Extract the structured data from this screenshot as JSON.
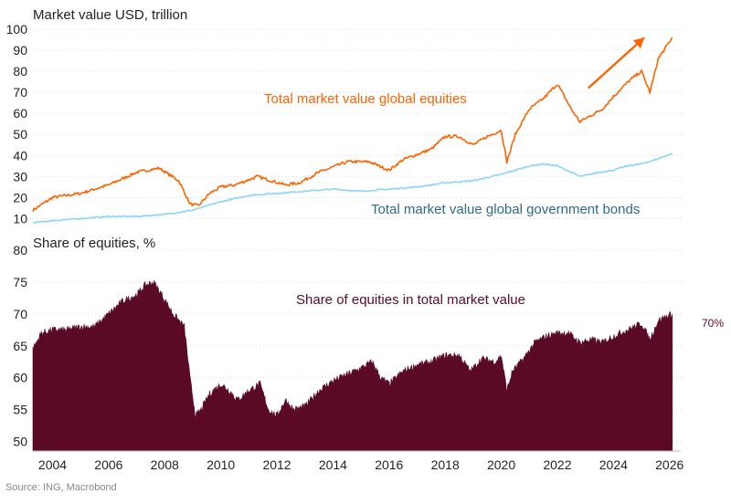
{
  "chart_data": [
    {
      "type": "line",
      "title": "Market value USD, trillion",
      "ylim": [
        8,
        100
      ],
      "yticks": [
        10,
        20,
        30,
        40,
        50,
        60,
        70,
        80,
        90,
        100
      ],
      "grid": true,
      "series": [
        {
          "name": "Total market value global equities",
          "color": "#ff6200",
          "x": [
            2003.3,
            2004.0,
            2005.0,
            2006.0,
            2007.0,
            2007.8,
            2008.5,
            2008.9,
            2009.2,
            2009.6,
            2010.0,
            2010.5,
            2011.3,
            2011.8,
            2012.3,
            2012.8,
            2013.5,
            2014.5,
            2015.3,
            2016.0,
            2016.5,
            2017.5,
            2018.0,
            2018.5,
            2019.0,
            2019.5,
            2020.0,
            2020.2,
            2020.5,
            2021.0,
            2021.5,
            2022.0,
            2022.5,
            2022.8,
            2023.2,
            2023.6,
            2024.0,
            2024.6,
            2025.0,
            2025.3,
            2025.6,
            2026.1
          ],
          "y": [
            14,
            20,
            22,
            26,
            32,
            34,
            28,
            17,
            16,
            22,
            25,
            26,
            30,
            28,
            26,
            27,
            32,
            37,
            37,
            33,
            38,
            43,
            49,
            49,
            45,
            49,
            52,
            37,
            50,
            62,
            67,
            74,
            62,
            56,
            59,
            62,
            68,
            76,
            80,
            70,
            86,
            96
          ]
        },
        {
          "name": "Total market value global government bonds",
          "color": "#8fd3f5",
          "x": [
            2003.3,
            2004.0,
            2005.0,
            2006.0,
            2007.0,
            2008.0,
            2009.0,
            2010.0,
            2011.0,
            2012.0,
            2013.0,
            2014.0,
            2015.0,
            2016.0,
            2017.0,
            2018.0,
            2019.0,
            2020.0,
            2021.0,
            2021.5,
            2022.0,
            2022.5,
            2022.8,
            2023.5,
            2024.0,
            2024.5,
            2025.0,
            2025.5,
            2026.1
          ],
          "y": [
            8,
            9,
            10,
            11,
            11,
            12,
            14,
            18,
            21,
            22,
            23,
            24,
            23,
            24,
            25,
            27,
            28,
            31,
            35,
            36,
            35,
            32,
            30,
            32,
            33,
            35,
            36,
            38,
            41
          ]
        }
      ],
      "annotations": [
        {
          "text": "Total market value global equities",
          "color": "#ff6200"
        },
        {
          "text": "Total market value global government bonds",
          "color": "#2e6a8a"
        }
      ],
      "arrow": {
        "from": [
          2023.1,
          72
        ],
        "to": [
          2025.1,
          96
        ],
        "color": "#ff6200"
      }
    },
    {
      "type": "area",
      "title": "Share of equities, %",
      "ylim": [
        48.5,
        80
      ],
      "yticks": [
        50,
        55,
        60,
        65,
        70,
        75,
        80
      ],
      "xlim": [
        2003.3,
        2026.4
      ],
      "xticks": [
        2004,
        2006,
        2008,
        2010,
        2012,
        2014,
        2016,
        2018,
        2020,
        2022,
        2024,
        2026
      ],
      "grid": true,
      "series": [
        {
          "name": "Share of equities in total market value",
          "color": "#5a0a26",
          "x": [
            2003.3,
            2003.6,
            2004.0,
            2004.5,
            2005.0,
            2005.5,
            2006.0,
            2006.5,
            2007.0,
            2007.3,
            2007.6,
            2007.9,
            2008.3,
            2008.7,
            2008.9,
            2009.1,
            2009.3,
            2009.6,
            2010.0,
            2010.3,
            2010.6,
            2011.0,
            2011.4,
            2011.7,
            2012.0,
            2012.3,
            2012.6,
            2013.0,
            2013.5,
            2014.0,
            2014.5,
            2015.0,
            2015.4,
            2015.7,
            2016.0,
            2016.5,
            2017.0,
            2017.5,
            2018.0,
            2018.5,
            2018.9,
            2019.3,
            2019.8,
            2020.0,
            2020.2,
            2020.4,
            2020.8,
            2021.2,
            2021.6,
            2022.0,
            2022.4,
            2022.8,
            2023.2,
            2023.6,
            2024.0,
            2024.5,
            2025.0,
            2025.3,
            2025.6,
            2026.1
          ],
          "y": [
            64.5,
            67,
            67.5,
            67.5,
            68,
            68,
            70,
            72,
            73,
            74.5,
            75,
            73,
            70,
            68,
            60,
            54,
            55,
            57.5,
            59,
            58,
            56.5,
            58,
            59,
            55,
            54,
            56.5,
            55,
            55.5,
            58,
            59.5,
            60.5,
            61.5,
            62.5,
            60,
            59,
            61,
            62,
            62.5,
            63.5,
            63.5,
            61,
            63,
            62.5,
            63.5,
            58,
            61,
            63,
            65.5,
            66.5,
            67,
            67,
            65.5,
            66,
            65.5,
            66.5,
            67.5,
            68.5,
            66,
            69,
            70
          ]
        }
      ],
      "annotations": [
        {
          "text": "Share of equities in total market value",
          "color": "#5a0a26"
        },
        {
          "text": "70%",
          "color": "#5a0a26"
        }
      ]
    }
  ],
  "source": "Source: ING, Macrobond"
}
